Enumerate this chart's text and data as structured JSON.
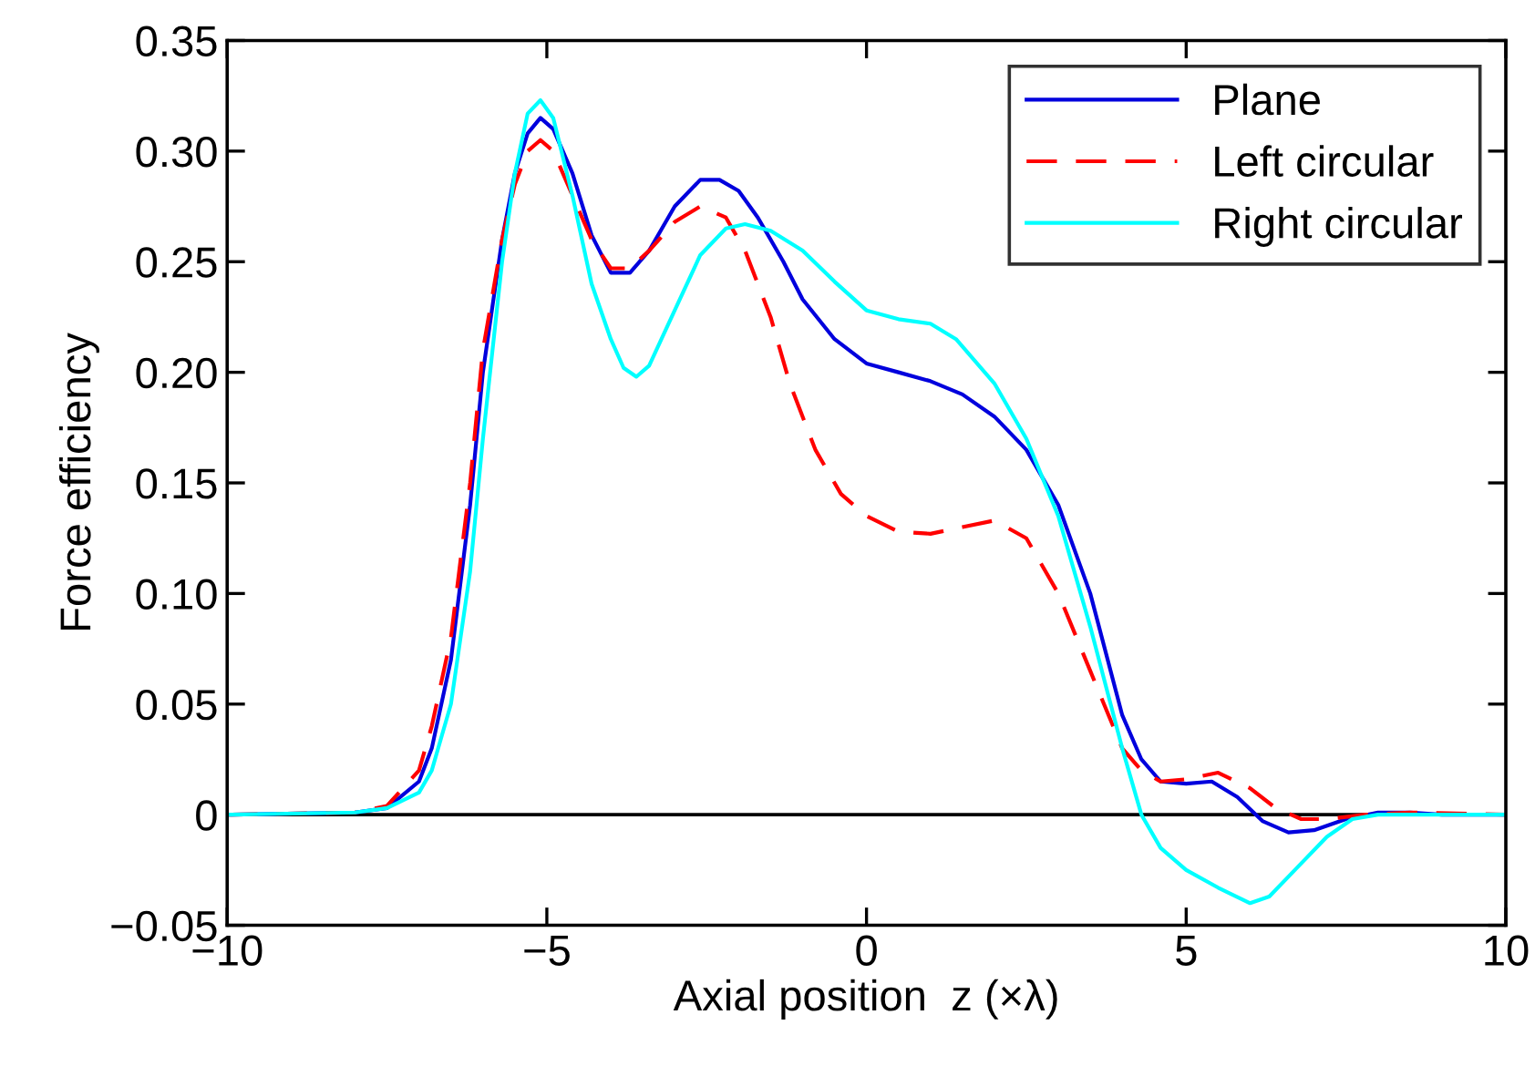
{
  "chart_data": {
    "type": "line",
    "xlabel": "Axial position  z (×λ)",
    "ylabel": "Force efficiency",
    "xlim": [
      -10,
      10
    ],
    "xticks": [
      {
        "value": -10,
        "label": "−10"
      },
      {
        "value": -5,
        "label": "−5"
      },
      0,
      5,
      10
    ],
    "ylim": [
      -0.05,
      0.35
    ],
    "yticks": [
      {
        "value": -0.05,
        "label": "−0.05"
      },
      {
        "value": 0,
        "label": "0"
      },
      {
        "value": 0.05,
        "label": "0.05"
      },
      {
        "value": 0.1,
        "label": "0.10"
      },
      {
        "value": 0.15,
        "label": "0.15"
      },
      {
        "value": 0.2,
        "label": "0.20"
      },
      {
        "value": 0.25,
        "label": "0.25"
      },
      {
        "value": 0.3,
        "label": "0.30"
      },
      {
        "value": 0.35,
        "label": "0.35"
      }
    ],
    "grid": false,
    "legend": "top right",
    "marker": "none",
    "ref_lines": [
      {
        "axis": "y",
        "value": 0,
        "color": "#000000",
        "line_style": "solid"
      }
    ],
    "series": [
      {
        "name": "Plane",
        "color": "#0000dd",
        "line_style": "solid",
        "x": [
          -10,
          -8,
          -7.5,
          -7,
          -6.8,
          -6.5,
          -6.2,
          -6,
          -5.7,
          -5.5,
          -5.3,
          -5.1,
          -4.9,
          -4.6,
          -4.3,
          -4,
          -3.7,
          -3.4,
          -3,
          -2.6,
          -2.3,
          -2,
          -1.7,
          -1.3,
          -1,
          -0.5,
          0,
          0.5,
          1,
          1.5,
          2,
          2.5,
          3,
          3.5,
          4,
          4.3,
          4.6,
          5,
          5.4,
          5.8,
          6.2,
          6.6,
          7,
          7.5,
          8,
          8.5,
          9,
          10
        ],
        "values": [
          0,
          0.001,
          0.003,
          0.015,
          0.03,
          0.07,
          0.14,
          0.2,
          0.26,
          0.29,
          0.308,
          0.315,
          0.31,
          0.29,
          0.262,
          0.245,
          0.245,
          0.255,
          0.275,
          0.287,
          0.287,
          0.282,
          0.27,
          0.25,
          0.233,
          0.215,
          0.204,
          0.2,
          0.196,
          0.19,
          0.18,
          0.165,
          0.14,
          0.1,
          0.045,
          0.025,
          0.015,
          0.014,
          0.015,
          0.008,
          -0.003,
          -0.008,
          -0.007,
          -0.002,
          0.001,
          0.001,
          0,
          0
        ]
      },
      {
        "name": "Left circular",
        "color": "#ff0000",
        "line_style": "dashed",
        "x": [
          -10,
          -8,
          -7.5,
          -7,
          -6.8,
          -6.5,
          -6.2,
          -6,
          -5.7,
          -5.5,
          -5.3,
          -5.1,
          -4.9,
          -4.6,
          -4.3,
          -4,
          -3.7,
          -3.4,
          -3,
          -2.6,
          -2.2,
          -1.9,
          -1.5,
          -1.2,
          -0.8,
          -0.4,
          0,
          0.5,
          1,
          1.5,
          2,
          2.5,
          3,
          3.5,
          4,
          4.3,
          4.6,
          5,
          5.5,
          6,
          6.4,
          6.8,
          7.2,
          7.8,
          8.5,
          10
        ],
        "values": [
          0,
          0.001,
          0.004,
          0.02,
          0.04,
          0.08,
          0.15,
          0.21,
          0.26,
          0.285,
          0.3,
          0.305,
          0.3,
          0.28,
          0.26,
          0.247,
          0.247,
          0.255,
          0.268,
          0.275,
          0.27,
          0.255,
          0.225,
          0.195,
          0.165,
          0.145,
          0.135,
          0.128,
          0.127,
          0.13,
          0.133,
          0.125,
          0.1,
          0.065,
          0.03,
          0.02,
          0.015,
          0.016,
          0.019,
          0.012,
          0.003,
          -0.002,
          -0.002,
          0,
          0.001,
          0
        ]
      },
      {
        "name": "Right circular",
        "color": "#00ffff",
        "line_style": "solid",
        "x": [
          -10,
          -8,
          -7.5,
          -7,
          -6.8,
          -6.5,
          -6.2,
          -6,
          -5.7,
          -5.5,
          -5.3,
          -5.1,
          -4.9,
          -4.6,
          -4.3,
          -4,
          -3.8,
          -3.6,
          -3.4,
          -3,
          -2.6,
          -2.2,
          -1.9,
          -1.5,
          -1,
          -0.5,
          0,
          0.5,
          1,
          1.4,
          2,
          2.5,
          3,
          3.5,
          4,
          4.3,
          4.6,
          5,
          5.5,
          6,
          6.3,
          6.7,
          7.2,
          7.6,
          8,
          10
        ],
        "values": [
          0,
          0.001,
          0.003,
          0.01,
          0.02,
          0.05,
          0.11,
          0.17,
          0.25,
          0.29,
          0.317,
          0.323,
          0.315,
          0.28,
          0.24,
          0.215,
          0.202,
          0.198,
          0.203,
          0.228,
          0.253,
          0.265,
          0.267,
          0.264,
          0.255,
          0.241,
          0.228,
          0.224,
          0.222,
          0.215,
          0.195,
          0.17,
          0.135,
          0.085,
          0.03,
          0,
          -0.015,
          -0.025,
          -0.033,
          -0.04,
          -0.037,
          -0.025,
          -0.01,
          -0.002,
          0,
          0
        ]
      }
    ]
  }
}
